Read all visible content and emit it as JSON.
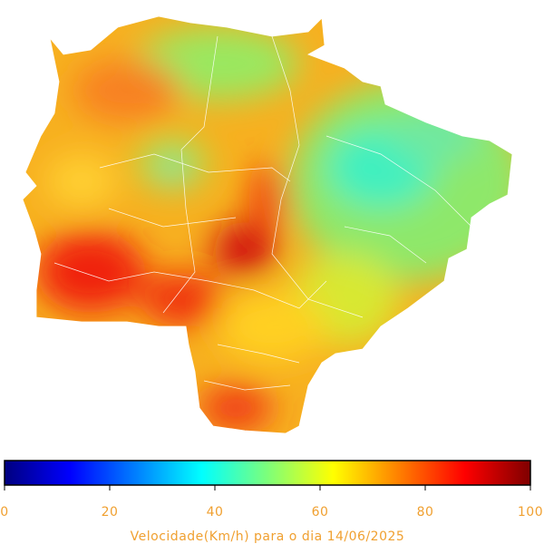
{
  "colorbar": {
    "label": "Velocidade(Km/h) para o dia 14/06/2025",
    "lim": [
      0,
      100
    ],
    "ticks": [
      0,
      20,
      40,
      60,
      80,
      100
    ]
  }
}
